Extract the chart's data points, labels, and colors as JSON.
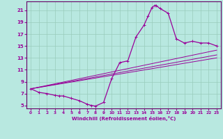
{
  "xlabel": "Windchill (Refroidissement éolien,°C)",
  "bg_color": "#b8e8e0",
  "line_color": "#990099",
  "spine_color": "#660066",
  "xlim": [
    -0.5,
    23.5
  ],
  "ylim": [
    4.5,
    22.5
  ],
  "xticks": [
    0,
    1,
    2,
    3,
    4,
    5,
    6,
    7,
    8,
    9,
    10,
    11,
    12,
    13,
    14,
    15,
    16,
    17,
    18,
    19,
    20,
    21,
    22,
    23
  ],
  "yticks": [
    5,
    7,
    9,
    11,
    13,
    15,
    17,
    19,
    21
  ],
  "grid_color": "#99ccbb",
  "curve_points": [
    [
      0,
      7.8
    ],
    [
      1,
      7.2
    ],
    [
      2,
      7.0
    ],
    [
      3,
      6.7
    ],
    [
      3.5,
      6.6
    ],
    [
      4,
      6.6
    ],
    [
      5,
      6.2
    ],
    [
      6,
      5.8
    ],
    [
      7,
      5.2
    ],
    [
      7.5,
      5.0
    ],
    [
      8,
      4.9
    ],
    [
      9,
      5.5
    ],
    [
      10,
      9.5
    ],
    [
      11,
      12.2
    ],
    [
      12,
      12.5
    ],
    [
      13,
      16.5
    ],
    [
      14,
      18.5
    ],
    [
      14.5,
      20.0
    ],
    [
      15,
      21.5
    ],
    [
      15.3,
      21.8
    ],
    [
      15.5,
      21.8
    ],
    [
      16,
      21.3
    ],
    [
      17,
      20.5
    ],
    [
      18,
      16.2
    ],
    [
      19,
      15.5
    ],
    [
      20,
      15.8
    ],
    [
      21,
      15.5
    ],
    [
      22,
      15.5
    ],
    [
      23,
      15.0
    ]
  ],
  "diag_line1": [
    [
      0,
      7.8
    ],
    [
      23,
      14.3
    ]
  ],
  "diag_line2": [
    [
      0,
      7.8
    ],
    [
      23,
      13.5
    ]
  ],
  "diag_line3": [
    [
      0,
      7.8
    ],
    [
      23,
      13.0
    ]
  ]
}
